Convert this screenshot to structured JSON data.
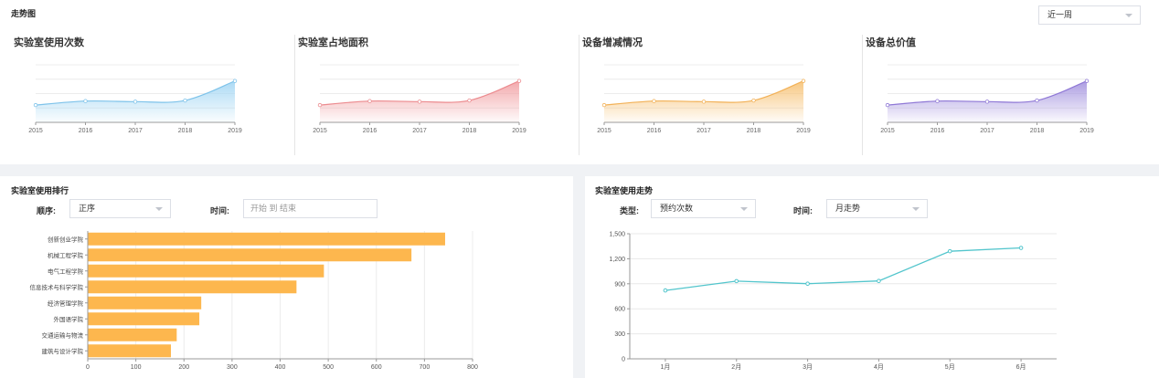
{
  "top": {
    "title": "走势图",
    "period": "近一周",
    "charts": [
      {
        "title": "实验室使用次数",
        "color": "#7ec3ea",
        "fill_top": "#a7d8f4"
      },
      {
        "title": "实验室占地面积",
        "color": "#ec8b8f",
        "fill_top": "#f2a5a8"
      },
      {
        "title": "设备增减情况",
        "color": "#f2b157",
        "fill_top": "#f7c47a"
      },
      {
        "title": "设备总价值",
        "color": "#8f78d6",
        "fill_top": "#a898e0"
      }
    ]
  },
  "ranking": {
    "title": "实验室使用排行",
    "order_label": "顺序:",
    "order_value": "正序",
    "time_label": "时间:",
    "time_placeholder": "开始 到 结束"
  },
  "trend": {
    "title": "实验室使用走势",
    "type_label": "类型:",
    "type_value": "预约次数",
    "time_label": "时间:",
    "time_value": "月走势"
  },
  "chart_data": [
    {
      "type": "area",
      "title": "实验室使用次数",
      "x": [
        "2015",
        "2016",
        "2017",
        "2018",
        "2019"
      ],
      "values": [
        30,
        37,
        36,
        38,
        72
      ],
      "ylim": [
        0,
        100
      ],
      "grid": true
    },
    {
      "type": "area",
      "title": "实验室占地面积",
      "x": [
        "2015",
        "2016",
        "2017",
        "2018",
        "2019"
      ],
      "values": [
        30,
        37,
        36,
        38,
        72
      ],
      "ylim": [
        0,
        100
      ],
      "grid": true
    },
    {
      "type": "area",
      "title": "设备增减情况",
      "x": [
        "2015",
        "2016",
        "2017",
        "2018",
        "2019"
      ],
      "values": [
        30,
        37,
        36,
        38,
        72
      ],
      "ylim": [
        0,
        100
      ],
      "grid": true
    },
    {
      "type": "area",
      "title": "设备总价值",
      "x": [
        "2015",
        "2016",
        "2017",
        "2018",
        "2019"
      ],
      "values": [
        30,
        37,
        36,
        38,
        72
      ],
      "ylim": [
        0,
        100
      ],
      "grid": true
    },
    {
      "type": "bar",
      "orientation": "horizontal",
      "title": "实验室使用排行",
      "categories": [
        "创新创业学院",
        "机械工程学院",
        "电气工程学院",
        "信息技术与科学学院",
        "经济管理学院",
        "外国语学院",
        "交通运输与物流",
        "建筑与设计学院"
      ],
      "values": [
        742,
        672,
        490,
        433,
        235,
        231,
        184,
        172
      ],
      "xlim": [
        0,
        800
      ],
      "xticks": [
        0,
        100,
        200,
        300,
        400,
        500,
        600,
        700,
        800
      ],
      "color": "#fdb74e",
      "grid": true
    },
    {
      "type": "line",
      "title": "实验室使用走势",
      "categories": [
        "1月",
        "2月",
        "3月",
        "4月",
        "5月",
        "6月"
      ],
      "values": [
        820,
        932,
        901,
        934,
        1290,
        1330
      ],
      "ylim": [
        0,
        1500
      ],
      "yticks": [
        "0",
        "300",
        "600",
        "900",
        "1,200",
        "1,500"
      ],
      "color": "#52c5cc",
      "grid": true
    }
  ]
}
